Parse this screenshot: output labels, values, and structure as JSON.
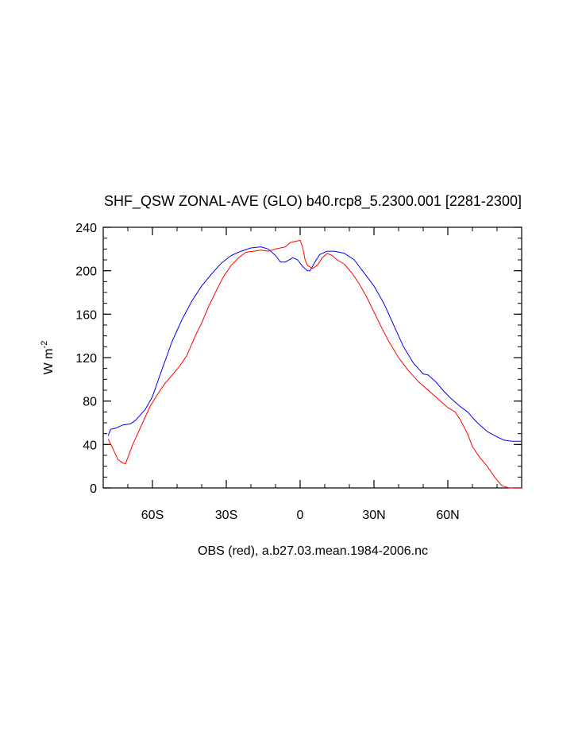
{
  "chart_data": {
    "type": "line",
    "title": "SHF_QSW ZONAL-AVE (GLO) b40.rcp8_5.2300.001 [2281-2300]",
    "xlabel": "OBS (red), a.b27.03.mean.1984-2006.nc",
    "ylabel": "W m",
    "ylabel_sup": "-2",
    "xlim": [
      -80,
      90
    ],
    "ylim": [
      0,
      240
    ],
    "y_ticks": [
      0,
      40,
      80,
      120,
      160,
      200,
      240
    ],
    "y_tick_labels": [
      "0",
      "40",
      "80",
      "120",
      "160",
      "200",
      "240"
    ],
    "x_ticks": [
      -60,
      -30,
      0,
      30,
      60
    ],
    "x_tick_labels": [
      "60S",
      "30S",
      "0",
      "30N",
      "60N"
    ],
    "grid": false,
    "series": [
      {
        "color": "#0000ff",
        "x": [
          -78,
          -77,
          -75,
          -72,
          -69,
          -67,
          -63,
          -60,
          -56,
          -52,
          -48,
          -44,
          -40,
          -36,
          -32,
          -28,
          -24,
          -20,
          -16,
          -13,
          -10,
          -8,
          -6,
          -3,
          -1,
          1,
          3,
          4,
          6,
          8,
          11,
          14,
          18,
          22,
          26,
          30,
          34,
          38,
          42,
          46,
          50,
          52,
          55,
          58,
          61,
          65,
          68,
          72,
          76,
          80,
          83,
          86,
          90
        ],
        "values": [
          48,
          54,
          55,
          58,
          59,
          62,
          72,
          84,
          110,
          135,
          155,
          172,
          186,
          197,
          207,
          214,
          218,
          221,
          222,
          220,
          214,
          208,
          208,
          212,
          210,
          204,
          200,
          200,
          208,
          215,
          218,
          218,
          216,
          210,
          198,
          186,
          170,
          150,
          130,
          115,
          105,
          104,
          98,
          90,
          83,
          75,
          70,
          60,
          52,
          47,
          44,
          43,
          43
        ]
      },
      {
        "color": "#ff0000",
        "x": [
          -78,
          -76,
          -74,
          -72,
          -71,
          -70,
          -68,
          -66,
          -64,
          -61,
          -58,
          -55,
          -52,
          -49,
          -46,
          -43,
          -40,
          -37,
          -34,
          -31,
          -28,
          -25,
          -22,
          -19,
          -16,
          -13,
          -10,
          -8,
          -6,
          -4,
          -2,
          0,
          1,
          2,
          3,
          5,
          7,
          9,
          11,
          13,
          15,
          18,
          21,
          24,
          27,
          30,
          33,
          36,
          40,
          44,
          48,
          52,
          56,
          60,
          63,
          65,
          68,
          70,
          73,
          76,
          79,
          82,
          85,
          90
        ],
        "values": [
          45,
          36,
          26,
          23,
          22,
          28,
          40,
          50,
          60,
          75,
          86,
          96,
          104,
          112,
          122,
          138,
          152,
          168,
          182,
          195,
          205,
          212,
          217,
          218,
          219,
          218,
          220,
          221,
          222,
          226,
          227,
          228,
          222,
          210,
          205,
          202,
          205,
          212,
          216,
          214,
          210,
          206,
          198,
          188,
          176,
          162,
          148,
          135,
          120,
          108,
          98,
          90,
          82,
          74,
          70,
          63,
          50,
          38,
          28,
          20,
          10,
          2,
          0,
          0
        ]
      }
    ]
  }
}
